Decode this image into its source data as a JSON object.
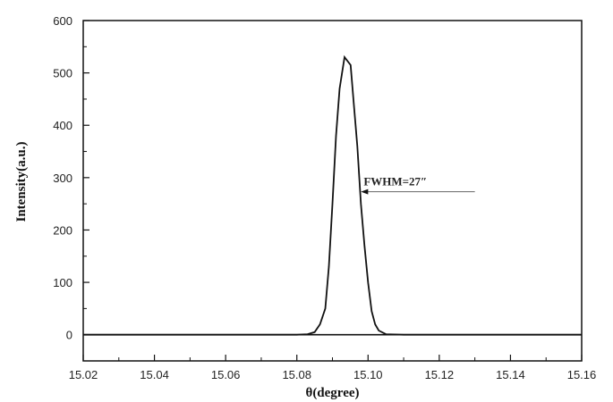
{
  "chart_data": {
    "type": "line",
    "title": "",
    "xlabel": "θ(degree)",
    "ylabel": "Intensity(a.u.)",
    "xlim": [
      15.02,
      15.16
    ],
    "ylim": [
      -50,
      600
    ],
    "xticks": [
      "15.02",
      "15.04",
      "15.06",
      "15.08",
      "15.10",
      "15.12",
      "15.14",
      "15.16"
    ],
    "yticks": [
      "0",
      "100",
      "200",
      "300",
      "400",
      "500",
      "600"
    ],
    "grid": false,
    "series": [
      {
        "color": "#111111",
        "x": [
          15.02,
          15.08,
          15.083,
          15.085,
          15.0865,
          15.088,
          15.089,
          15.09,
          15.091,
          15.092,
          15.0934,
          15.0951,
          15.096,
          15.097,
          15.098,
          15.099,
          15.1,
          15.101,
          15.102,
          15.103,
          15.105,
          15.11,
          15.16
        ],
        "y": [
          0,
          0,
          1,
          5,
          20,
          50,
          130,
          250,
          380,
          470,
          530,
          515,
          440,
          360,
          250,
          170,
          100,
          45,
          20,
          8,
          1,
          0,
          0
        ]
      }
    ],
    "annotations": [
      {
        "text": "FWHM=27″",
        "arrow_from": [
          15.13,
          273
        ],
        "arrow_to": [
          15.098,
          273
        ]
      }
    ]
  }
}
